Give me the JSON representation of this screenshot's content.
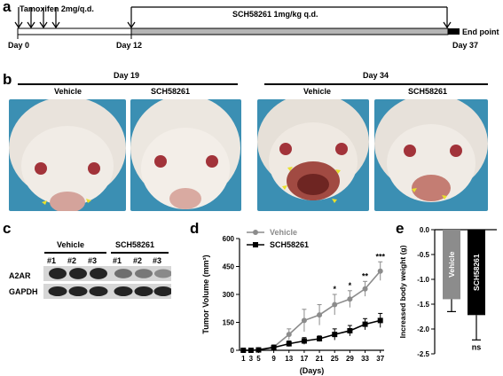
{
  "panels": {
    "a": "a",
    "b": "b",
    "c": "c",
    "d": "d",
    "e": "e"
  },
  "timeline": {
    "tamoxifen_label": "Tamoxifen 2mg/q.d.",
    "sch_label": "SCH58261 1mg/kg q.d.",
    "day0": "Day 0",
    "day12": "Day 12",
    "day37": "Day 37",
    "endpoint": "End point"
  },
  "photos": {
    "day19": "Day 19",
    "day34": "Day 34",
    "vehicle": "Vehicle",
    "sch": "SCH58261"
  },
  "western": {
    "vehicle": "Vehicle",
    "sch": "SCH58261",
    "lanes": [
      "#1",
      "#2",
      "#3",
      "#1",
      "#2",
      "#3"
    ],
    "rows": [
      "A2AR",
      "GAPDH"
    ],
    "a2ar_intensity": [
      0.95,
      0.95,
      0.95,
      0.55,
      0.5,
      0.4
    ],
    "gapdh_intensity": [
      0.9,
      0.9,
      0.9,
      0.9,
      0.9,
      0.9
    ]
  },
  "chart_data": [
    {
      "type": "line",
      "panel": "d",
      "ylabel": "Tumor Volume (mm³)",
      "xlabel": "(Days)",
      "x": [
        1,
        3,
        5,
        9,
        13,
        17,
        21,
        25,
        29,
        33,
        37
      ],
      "ylim": [
        0,
        600
      ],
      "yticks": [
        0,
        150,
        300,
        450,
        600
      ],
      "legend_placement": "top-left",
      "series": [
        {
          "name": "Vehicle",
          "color": "#8c8c8c",
          "values": [
            0,
            0,
            3,
            18,
            85,
            160,
            190,
            245,
            275,
            330,
            425
          ],
          "errors": [
            0,
            0,
            3,
            12,
            30,
            60,
            55,
            55,
            45,
            40,
            50
          ]
        },
        {
          "name": "SCH58261",
          "color": "#000000",
          "values": [
            0,
            0,
            2,
            15,
            35,
            50,
            62,
            85,
            105,
            140,
            160
          ],
          "errors": [
            0,
            0,
            2,
            8,
            15,
            18,
            15,
            30,
            28,
            30,
            38
          ]
        }
      ],
      "significance": [
        {
          "x": 25,
          "label": "*"
        },
        {
          "x": 29,
          "label": "*"
        },
        {
          "x": 33,
          "label": "**"
        },
        {
          "x": 37,
          "label": "***"
        }
      ]
    },
    {
      "type": "bar",
      "panel": "e",
      "ylabel": "Increased body weight (g)",
      "categories": [
        "Vehicle",
        "SCH58261"
      ],
      "values": [
        -1.4,
        -1.72
      ],
      "errors": [
        0.25,
        0.5
      ],
      "colors": [
        "#8c8c8c",
        "#000000"
      ],
      "ylim": [
        -2.5,
        0.0
      ],
      "yticks": [
        "0.0",
        "-0.5",
        "-1.0",
        "-1.5",
        "-2.0",
        "-2.5"
      ],
      "annotation": "ns"
    }
  ]
}
